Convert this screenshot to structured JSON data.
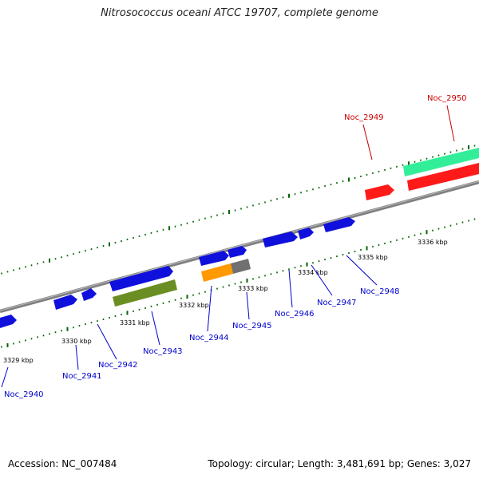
{
  "title": "Nitrosococcus oceani ATCC 19707, complete genome",
  "accession": "Accession: NC_007484",
  "summary": "Topology: circular; Length: 3,481,691 bp; Genes: 3,027",
  "kbp_labels": [
    "3329 kbp",
    "3330 kbp",
    "3331 kbp",
    "3332 kbp",
    "3333 kbp",
    "3334 kbp",
    "3335 kbp",
    "3336 kbp"
  ],
  "gene_labels": [
    "Noc_2940",
    "Noc_2941",
    "Noc_2942",
    "Noc_2943",
    "Noc_2944",
    "Noc_2945",
    "Noc_2946",
    "Noc_2947",
    "Noc_2948",
    "Noc_2949",
    "Noc_2950"
  ],
  "colors": {
    "forward_gene": "#1010dd",
    "reverse_gene": "#ff1a1a",
    "label_blue": "#0000cc",
    "label_red": "#cc0000",
    "backbone": "#808080",
    "tick": "#006600",
    "cog_green": "#6b8e23",
    "cog_orange": "#ff9900",
    "cog_gray": "#707070",
    "cog_teal": "#33ee99",
    "cog_red": "#ff1a1a"
  }
}
